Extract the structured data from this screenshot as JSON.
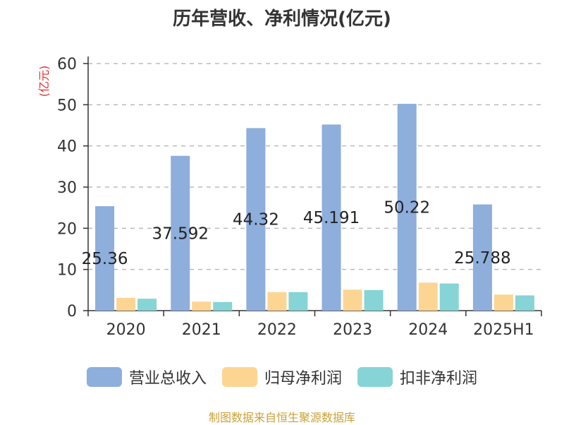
{
  "title": "历年营收、净利情况(亿元)",
  "source": "制图数据来自恒生聚源数据库",
  "chart_data": {
    "type": "bar",
    "title": "历年营收、净利情况(亿元)",
    "ylabel": "(亿元)",
    "xlabel": "",
    "ylim": [
      0,
      60
    ],
    "yticks": [
      0,
      10,
      20,
      30,
      40,
      50,
      60
    ],
    "grid": true,
    "legend": "bottom",
    "categories": [
      "2020",
      "2021",
      "2022",
      "2023",
      "2024",
      "2025H1"
    ],
    "series": [
      {
        "name": "营业总收入",
        "color": "#8eaedc",
        "values": [
          25.36,
          37.592,
          44.32,
          45.191,
          50.22,
          25.788
        ],
        "labels": [
          "25.36",
          "37.592",
          "44.32",
          "45.191",
          "50.22",
          "25.788"
        ]
      },
      {
        "name": "归母净利润",
        "color": "#fdd593",
        "values": [
          3.1,
          2.2,
          4.5,
          5.1,
          6.8,
          3.9
        ]
      },
      {
        "name": "扣非净利润",
        "color": "#86d4d6",
        "values": [
          2.9,
          2.1,
          4.5,
          5.0,
          6.6,
          3.7
        ]
      }
    ]
  }
}
